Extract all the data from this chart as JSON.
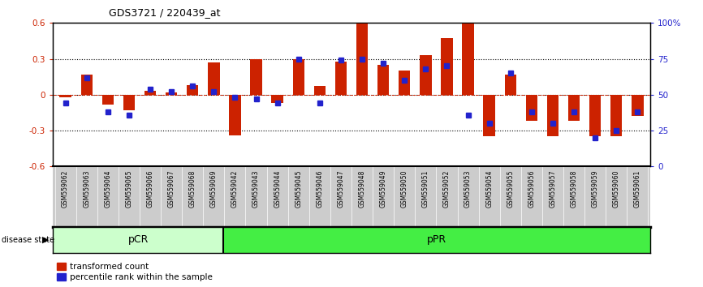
{
  "title": "GDS3721 / 220439_at",
  "samples": [
    "GSM559062",
    "GSM559063",
    "GSM559064",
    "GSM559065",
    "GSM559066",
    "GSM559067",
    "GSM559068",
    "GSM559069",
    "GSM559042",
    "GSM559043",
    "GSM559044",
    "GSM559045",
    "GSM559046",
    "GSM559047",
    "GSM559048",
    "GSM559049",
    "GSM559050",
    "GSM559051",
    "GSM559052",
    "GSM559053",
    "GSM559054",
    "GSM559055",
    "GSM559056",
    "GSM559057",
    "GSM559058",
    "GSM559059",
    "GSM559060",
    "GSM559061"
  ],
  "transformed_count": [
    -0.02,
    0.17,
    -0.08,
    -0.13,
    0.03,
    0.02,
    0.08,
    0.27,
    -0.34,
    0.3,
    -0.07,
    0.3,
    0.07,
    0.28,
    0.6,
    0.25,
    0.2,
    0.33,
    0.47,
    0.6,
    -0.35,
    0.17,
    -0.22,
    -0.35,
    -0.22,
    -0.35,
    -0.35,
    -0.18
  ],
  "percentile_rank": [
    44,
    62,
    38,
    36,
    54,
    52,
    56,
    52,
    48,
    47,
    44,
    75,
    44,
    74,
    75,
    72,
    60,
    68,
    70,
    36,
    30,
    65,
    38,
    30,
    38,
    20,
    25,
    38
  ],
  "pcr_count": 8,
  "ppr_count": 20,
  "bar_color": "#cc2200",
  "dot_color": "#2222cc",
  "ylim_left": [
    -0.6,
    0.6
  ],
  "ylim_right": [
    0,
    100
  ],
  "yticks_left": [
    -0.6,
    -0.3,
    0.0,
    0.3,
    0.6
  ],
  "yticks_right": [
    0,
    25,
    50,
    75,
    100
  ],
  "ytick_labels_right": [
    "0",
    "25",
    "50",
    "75",
    "100%"
  ],
  "pcr_color": "#ccffcc",
  "ppr_color": "#44ee44",
  "bg_color": "#cccccc",
  "legend_red": "transformed count",
  "legend_blue": "percentile rank within the sample",
  "fig_width": 8.66,
  "fig_height": 3.54
}
